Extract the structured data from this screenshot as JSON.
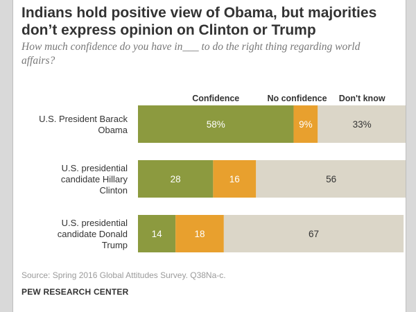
{
  "chart_data": {
    "type": "bar",
    "orientation": "horizontal",
    "stacked": true,
    "title": "Indians hold positive view of Obama, but majorities don’t express opinion on Clinton or Trump",
    "subtitle": "How much confidence do you have in___ to do the right thing regarding world affairs?",
    "categories": [
      [
        "U.S. President Barack",
        "Obama"
      ],
      [
        "U.S. presidential",
        "candidate Hillary",
        "Clinton"
      ],
      [
        "U.S. presidential",
        "candidate Donald",
        "Trump"
      ]
    ],
    "series": [
      {
        "name": "Confidence",
        "values": [
          58,
          28,
          14
        ],
        "labels": [
          "58%",
          "28",
          "14"
        ]
      },
      {
        "name": "No confidence",
        "values": [
          9,
          16,
          18
        ],
        "labels": [
          "9%",
          "16",
          "18"
        ]
      },
      {
        "name": "Don't know",
        "values": [
          33,
          56,
          67
        ],
        "labels": [
          "33%",
          "56",
          "67"
        ]
      }
    ],
    "colors": {
      "confidence": "#8c9a3f",
      "no_confidence": "#e8a02e",
      "dont_know": "#dbd6c8"
    },
    "xlim": [
      0,
      100
    ],
    "legend_position": "top"
  },
  "footer": {
    "source": "Source: Spring 2016 Global Attitudes Survey. Q38Na-c.",
    "brand": "PEW RESEARCH CENTER"
  }
}
